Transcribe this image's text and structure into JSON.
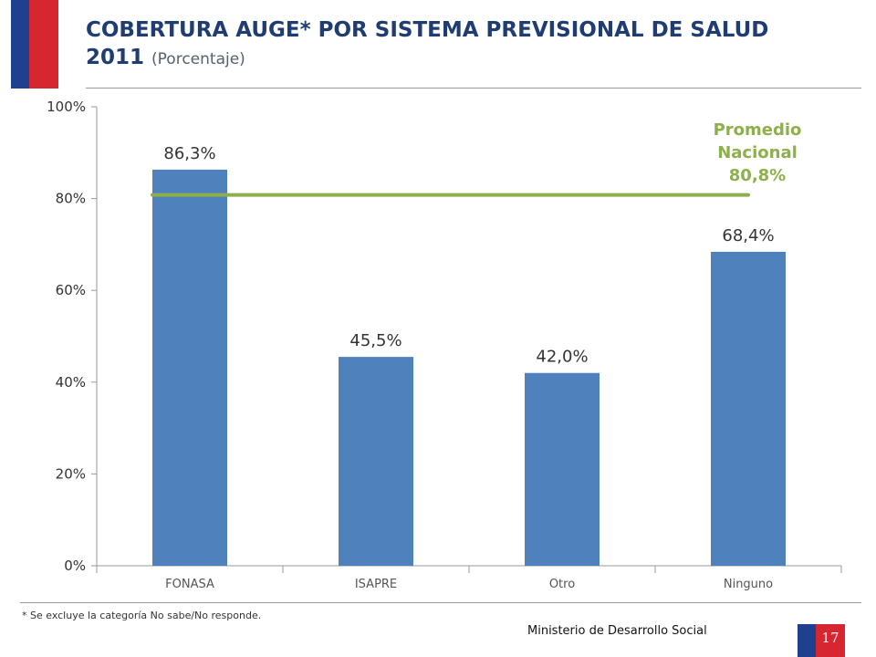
{
  "header": {
    "title": "COBERTURA AUGE* POR SISTEMA PREVISIONAL DE SALUD",
    "year": "2011",
    "subtitle": "(Porcentaje)"
  },
  "colors": {
    "bar": "#4f81bd",
    "average_line": "#8db04a",
    "title": "#1f3c73",
    "flag_blue": "#1f3f8f",
    "flag_red": "#d6262f"
  },
  "chart_data": {
    "type": "bar",
    "title": "COBERTURA AUGE* POR SISTEMA PREVISIONAL DE SALUD 2011 (Porcentaje)",
    "categories": [
      "FONASA",
      "ISAPRE",
      "Otro",
      "Ninguno"
    ],
    "values": [
      86.3,
      45.5,
      42.0,
      68.4
    ],
    "value_labels": [
      "86,3%",
      "45,5%",
      "42,0%",
      "68,4%"
    ],
    "ylim": [
      0,
      100
    ],
    "y_ticks": [
      0,
      20,
      40,
      60,
      80,
      100
    ],
    "y_tick_labels": [
      "0%",
      "20%",
      "40%",
      "60%",
      "80%",
      "100%"
    ],
    "grid": false,
    "reference_line": {
      "value": 80.8,
      "label_lines": [
        "Promedio",
        "Nacional",
        "80,8%"
      ]
    }
  },
  "footer": {
    "footnote": "* Se excluye la categoría No sabe/No responde.",
    "ministry": "Ministerio de Desarrollo Social",
    "page_number": "17"
  }
}
